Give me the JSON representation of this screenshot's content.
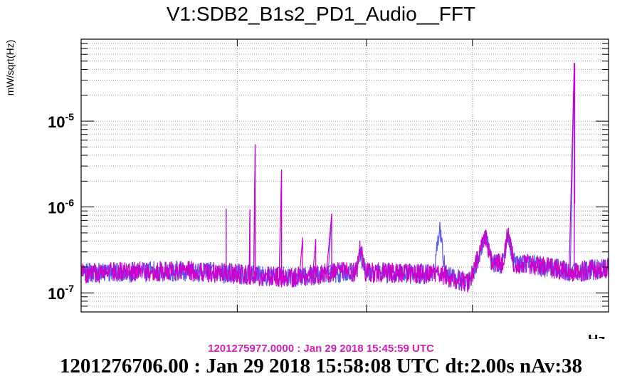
{
  "chart_data": {
    "type": "line",
    "title": "V1:SDB2_B1s2_PD1_Audio__FFT",
    "ylabel": "mW/sqrt(Hz)",
    "xlabel": "Hz",
    "yscale": "log",
    "ylim": [
      6e-08,
      9e-05
    ],
    "xlim": [
      0,
      1
    ],
    "grid": true,
    "yticks": [
      {
        "value": 1e-05,
        "base": "10",
        "exp": "-5"
      },
      {
        "value": 1e-06,
        "base": "10",
        "exp": "-6"
      },
      {
        "value": 1e-07,
        "base": "10",
        "exp": "-7"
      }
    ],
    "series": [
      {
        "color": "#5a5af0",
        "noise_floor": [
          [
            0,
            1.75e-07
          ],
          [
            0.2,
            1.85e-07
          ],
          [
            0.4,
            1.55e-07
          ],
          [
            0.5,
            1.8e-07
          ],
          [
            0.68,
            1.7e-07
          ],
          [
            0.735,
            1.35e-07
          ],
          [
            0.75,
            2.3e-07
          ],
          [
            0.85,
            2.2e-07
          ],
          [
            0.935,
            1.8e-07
          ],
          [
            1,
            2e-07
          ]
        ],
        "features": [
          {
            "x": 0.53,
            "peak": 2.7e-07,
            "width": 0.006
          },
          {
            "x": 0.68,
            "peak": 5.4e-07,
            "width": 0.006
          },
          {
            "x": 0.765,
            "peak": 4.5e-07,
            "width": 0.008
          },
          {
            "x": 0.81,
            "peak": 4.7e-07,
            "width": 0.006
          }
        ],
        "lines": [
          {
            "x": 0.275,
            "y": 9.5e-07
          },
          {
            "x": 0.32,
            "y": 9.3e-07
          },
          {
            "x": 0.33,
            "y": 5.3e-06
          },
          {
            "x": 0.38,
            "y": 2.7e-06
          },
          {
            "x": 0.475,
            "y": 8.3e-07
          },
          {
            "x": 0.935,
            "y": 4.7e-05
          }
        ]
      },
      {
        "color": "#cc00cc",
        "noise_floor": [
          [
            0,
            1.75e-07
          ],
          [
            0.2,
            1.85e-07
          ],
          [
            0.4,
            1.55e-07
          ],
          [
            0.5,
            1.8e-07
          ],
          [
            0.68,
            1.7e-07
          ],
          [
            0.735,
            1.35e-07
          ],
          [
            0.75,
            2.3e-07
          ],
          [
            0.85,
            2.2e-07
          ],
          [
            0.935,
            1.8e-07
          ],
          [
            1,
            2e-07
          ]
        ],
        "features": [
          {
            "x": 0.53,
            "peak": 3.3e-07,
            "width": 0.005
          },
          {
            "x": 0.765,
            "peak": 4.6e-07,
            "width": 0.008
          },
          {
            "x": 0.81,
            "peak": 5.1e-07,
            "width": 0.006
          }
        ],
        "lines": [
          {
            "x": 0.275,
            "y": 9.5e-07
          },
          {
            "x": 0.32,
            "y": 9.3e-07
          },
          {
            "x": 0.33,
            "y": 5.3e-06
          },
          {
            "x": 0.38,
            "y": 2.7e-06
          },
          {
            "x": 0.42,
            "y": 4.4e-07
          },
          {
            "x": 0.445,
            "y": 4.2e-07
          },
          {
            "x": 0.475,
            "y": 8.3e-07
          },
          {
            "x": 0.935,
            "y": 4.7e-05
          },
          {
            "x": 0.936,
            "y": 1.1e-06
          }
        ]
      }
    ]
  },
  "reference_caption": "1201275977.0000 : Jan 29 2018 15:45:59 UTC",
  "main_caption": "1201276706.00 : Jan 29 2018 15:58:08 UTC dt:2.00s nAv:38"
}
